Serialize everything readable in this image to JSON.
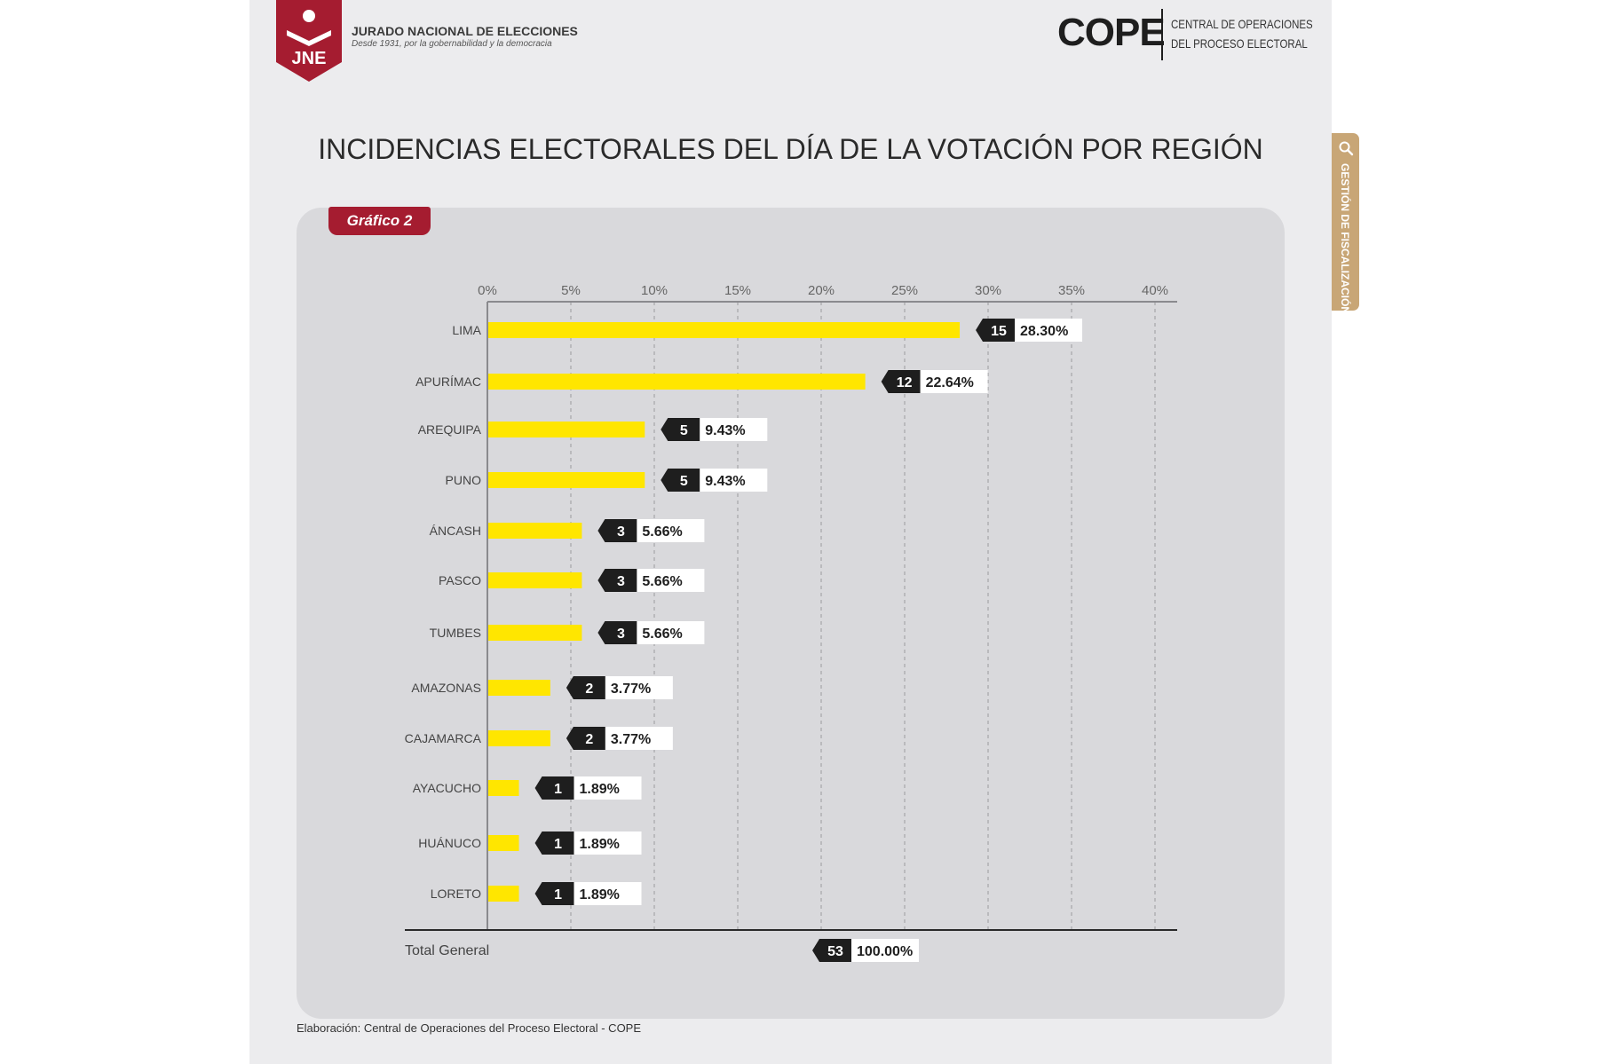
{
  "header": {
    "org_abbr": "JNE",
    "org_name": "JURADO NACIONAL DE ELECCIONES",
    "org_tagline": "Desde 1931, por la gobernabilidad y la democracia",
    "cope_word": "COPE",
    "cope_desc_line1": "CENTRAL DE OPERACIONES",
    "cope_desc_line2": "DEL PROCESO ELECTORAL"
  },
  "side_tab": {
    "label": "GESTIÓN DE FISCALIZACIÓN",
    "icon": "search-icon"
  },
  "title": "INCIDENCIAS ELECTORALES DEL DÍA DE LA VOTACIÓN POR REGIÓN",
  "badge": "Gráfico 2",
  "footer": "Elaboración: Central de Operaciones del Proceso Electoral - COPE",
  "colors": {
    "bar": "#ffe600",
    "count_box": "#1e1e1e",
    "brand_red": "#a51c30",
    "tab": "#c8a676",
    "panel": "#d9d9dc"
  },
  "chart_data": {
    "type": "bar",
    "orientation": "horizontal",
    "categories": [
      "LIMA",
      "APURÍMAC",
      "AREQUIPA",
      "PUNO",
      "ÁNCASH",
      "PASCO",
      "TUMBES",
      "AMAZONAS",
      "CAJAMARCA",
      "AYACUCHO",
      "HUÁNUCO",
      "LORETO"
    ],
    "counts": [
      15,
      12,
      5,
      5,
      3,
      3,
      3,
      2,
      2,
      1,
      1,
      1
    ],
    "values": [
      28.3,
      22.64,
      9.43,
      9.43,
      5.66,
      5.66,
      5.66,
      3.77,
      3.77,
      1.89,
      1.89,
      1.89
    ],
    "value_labels": [
      "28.30%",
      "22.64%",
      "9.43%",
      "9.43%",
      "5.66%",
      "5.66%",
      "5.66%",
      "3.77%",
      "3.77%",
      "1.89%",
      "1.89%",
      "1.89%"
    ],
    "xlim": [
      0,
      40
    ],
    "x_ticks": [
      "0%",
      "5%",
      "10%",
      "15%",
      "20%",
      "25%",
      "30%",
      "35%",
      "40%"
    ],
    "grid": true,
    "total": {
      "label": "Total General",
      "count": 53,
      "value_label": "100.00%"
    }
  }
}
